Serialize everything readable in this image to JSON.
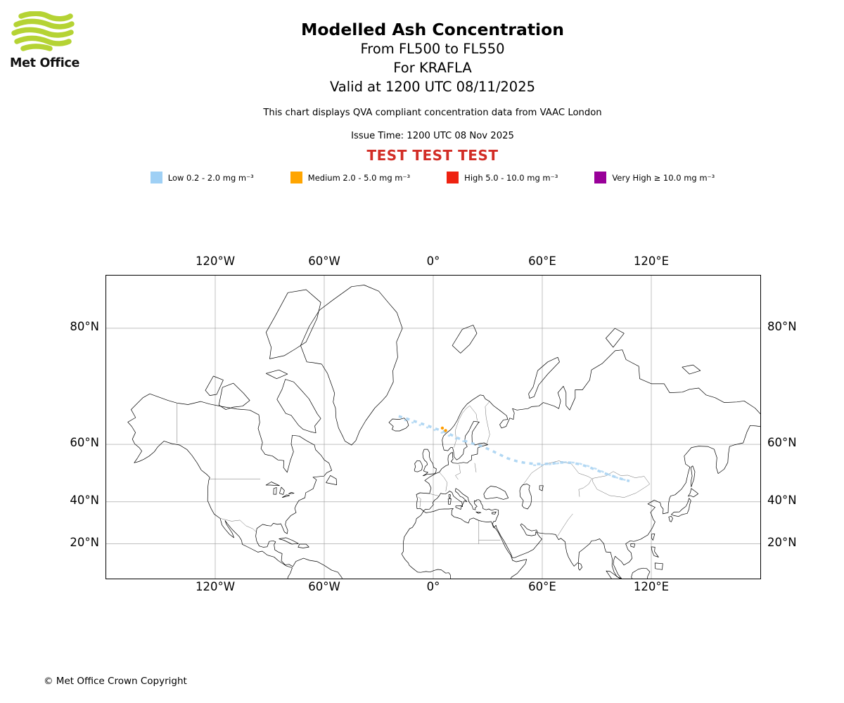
{
  "logo": {
    "brand": "Met Office",
    "wave_color": "#b5d334"
  },
  "header": {
    "title": "Modelled Ash Concentration",
    "flight_levels": "From FL500 to FL550",
    "volcano": "For KRAFLA",
    "valid": "Valid at 1200 UTC 08/11/2025",
    "description": "This chart displays QVA compliant concentration data from VAAC London",
    "issue_time": "Issue Time: 1200 UTC 08 Nov 2025",
    "test_banner": "TEST TEST TEST",
    "test_banner_color": "#d22d26"
  },
  "legend": {
    "items": [
      {
        "label": "Low 0.2 - 2.0 mg m⁻³",
        "color": "#9fd0f5"
      },
      {
        "label": "Medium 2.0 - 5.0 mg m⁻³",
        "color": "#ffa500"
      },
      {
        "label": "High 5.0 - 10.0 mg m⁻³",
        "color": "#ee2211"
      },
      {
        "label": "Very High ≥ 10.0 mg m⁻³",
        "color": "#990099"
      }
    ]
  },
  "map": {
    "x_tick_labels": [
      "120°W",
      "60°W",
      "0°",
      "60°E",
      "120°E"
    ],
    "x_tick_lons": [
      -120,
      -60,
      0,
      60,
      120
    ],
    "y_tick_labels": [
      "80°N",
      "60°N",
      "40°N",
      "20°N"
    ],
    "y_tick_lats": [
      80,
      60,
      40,
      20
    ],
    "lon_range": [
      -180,
      180
    ],
    "grid_color": "#9a9a9a",
    "plume": {
      "low_color": "#a8d3f2",
      "medium_color": "#ff9d00",
      "low_path": [
        [
          -19,
          66.9
        ],
        [
          -14,
          66.3
        ],
        [
          -9,
          65.6
        ],
        [
          -4,
          64.9
        ],
        [
          1,
          64.1
        ],
        [
          5,
          63.5
        ],
        [
          9,
          62.7
        ],
        [
          13,
          61.8
        ],
        [
          17,
          61
        ],
        [
          21,
          60.3
        ],
        [
          26,
          59.6
        ],
        [
          31,
          58.5
        ],
        [
          36,
          57.2
        ],
        [
          41,
          55.9
        ],
        [
          46,
          55
        ],
        [
          51,
          54.4
        ],
        [
          56,
          54.1
        ],
        [
          61,
          54.1
        ],
        [
          66,
          54.3
        ],
        [
          71,
          54.6
        ],
        [
          76,
          54.5
        ],
        [
          81,
          54
        ],
        [
          86,
          53
        ],
        [
          91,
          51.8
        ],
        [
          96,
          50.6
        ],
        [
          101,
          49.5
        ],
        [
          105,
          48.7
        ],
        [
          108,
          48.2
        ]
      ],
      "low_path2": [
        [
          -16,
          66.1
        ],
        [
          -11,
          65.4
        ],
        [
          -6,
          64.7
        ],
        [
          -1,
          64
        ],
        [
          4,
          63.2
        ],
        [
          9,
          62.2
        ],
        [
          14,
          61.2
        ],
        [
          19,
          60.5
        ]
      ],
      "low_path3": [
        [
          55,
          53.7
        ],
        [
          61,
          53.8
        ],
        [
          67,
          54.2
        ],
        [
          73,
          54.7
        ],
        [
          79,
          54.5
        ],
        [
          85,
          53.5
        ],
        [
          91,
          52.2
        ],
        [
          97,
          50.4
        ],
        [
          103,
          49
        ],
        [
          107,
          48.4
        ]
      ],
      "medium_points": [
        [
          5,
          64.2
        ],
        [
          6.8,
          63.6
        ]
      ]
    }
  },
  "footer": {
    "copyright": "© Met Office Crown Copyright"
  }
}
